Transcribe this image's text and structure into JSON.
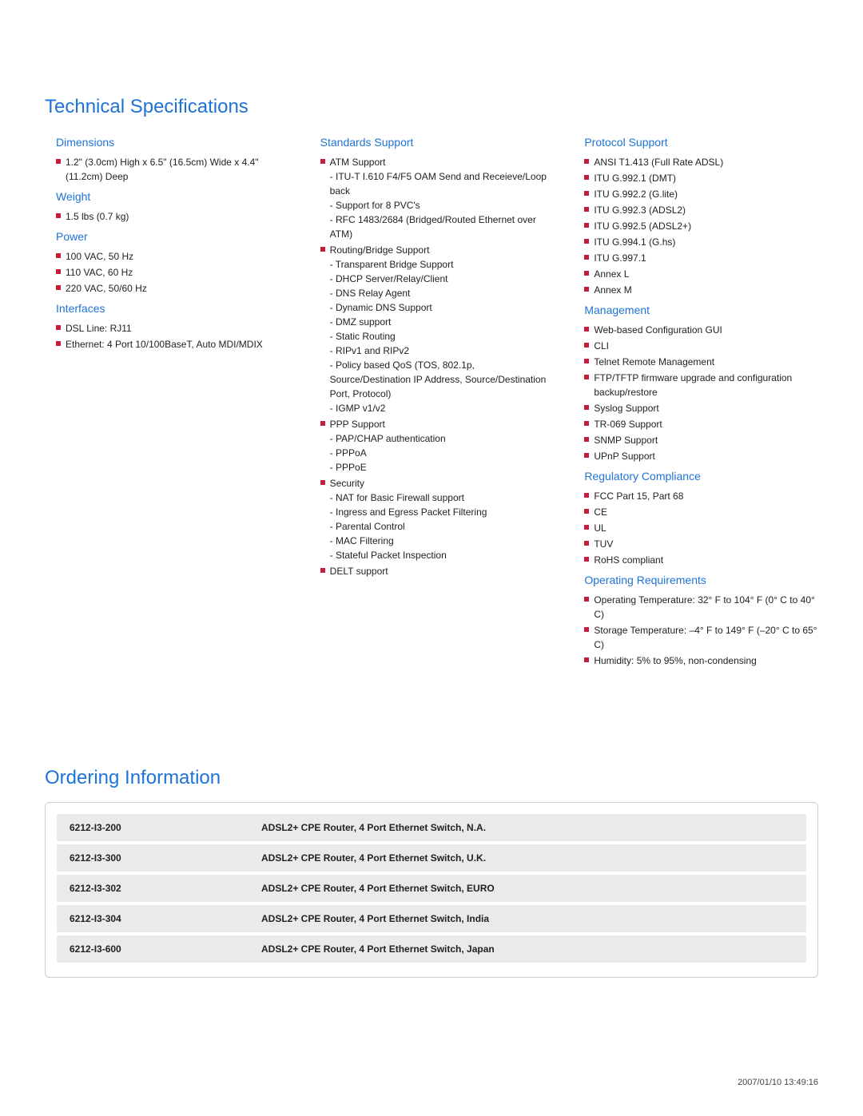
{
  "tech_specs_title": "Technical Specifications",
  "ordering_title": "Ordering Information",
  "timestamp": "2007/01/10 13:49:16",
  "columns": [
    {
      "sections": [
        {
          "title": "Dimensions",
          "items": [
            {
              "text": "1.2\" (3.0cm) High x 6.5\" (16.5cm) Wide x 4.4\" (11.2cm) Deep"
            }
          ]
        },
        {
          "title": "Weight",
          "items": [
            {
              "text": "1.5 lbs (0.7 kg)"
            }
          ]
        },
        {
          "title": "Power",
          "items": [
            {
              "text": "100 VAC, 50 Hz"
            },
            {
              "text": "110 VAC, 60 Hz"
            },
            {
              "text": "220 VAC, 50/60 Hz"
            }
          ]
        },
        {
          "title": "Interfaces",
          "items": [
            {
              "text": "DSL Line: RJ11"
            },
            {
              "text": "Ethernet: 4 Port 10/100BaseT, Auto MDI/MDIX"
            }
          ]
        }
      ]
    },
    {
      "sections": [
        {
          "title": "Standards Support",
          "items": [
            {
              "text": "ATM Support",
              "sub": [
                "- ITU-T I.610 F4/F5 OAM Send and Receieve/Loop back",
                "- Support for 8 PVC's",
                "- RFC 1483/2684 (Bridged/Routed Ethernet over ATM)"
              ]
            },
            {
              "text": "Routing/Bridge Support",
              "sub": [
                "- Transparent Bridge Support",
                "- DHCP Server/Relay/Client",
                "- DNS Relay Agent",
                "- Dynamic DNS Support",
                "- DMZ support",
                "- Static Routing",
                "- RIPv1 and RIPv2",
                "- Policy based QoS (TOS, 802.1p, Source/Destination IP Address, Source/Destination Port, Protocol)",
                "- IGMP v1/v2"
              ]
            },
            {
              "text": "PPP Support",
              "sub": [
                "- PAP/CHAP authentication",
                "- PPPoA",
                "- PPPoE"
              ]
            },
            {
              "text": "Security",
              "sub": [
                "- NAT for Basic Firewall support",
                "- Ingress and Egress Packet Filtering",
                "- Parental Control",
                "- MAC Filtering",
                "- Stateful Packet Inspection"
              ]
            },
            {
              "text": "DELT support"
            }
          ]
        }
      ]
    },
    {
      "sections": [
        {
          "title": "Protocol Support",
          "items": [
            {
              "text": "ANSI T1.413 (Full Rate ADSL)"
            },
            {
              "text": "ITU G.992.1 (DMT)"
            },
            {
              "text": "ITU G.992.2 (G.lite)"
            },
            {
              "text": "ITU G.992.3 (ADSL2)"
            },
            {
              "text": "ITU G.992.5 (ADSL2+)"
            },
            {
              "text": "ITU G.994.1 (G.hs)"
            },
            {
              "text": "ITU G.997.1"
            },
            {
              "text": "Annex L"
            },
            {
              "text": "Annex M"
            }
          ]
        },
        {
          "title": "Management",
          "items": [
            {
              "text": "Web-based Configuration GUI"
            },
            {
              "text": "CLI"
            },
            {
              "text": "Telnet Remote Management"
            },
            {
              "text": "FTP/TFTP firmware upgrade and configuration backup/restore"
            },
            {
              "text": "Syslog Support"
            },
            {
              "text": "TR-069 Support"
            },
            {
              "text": "SNMP Support"
            },
            {
              "text": "UPnP Support"
            }
          ]
        },
        {
          "title": "Regulatory Compliance",
          "items": [
            {
              "text": "FCC Part 15, Part 68"
            },
            {
              "text": "CE"
            },
            {
              "text": "UL"
            },
            {
              "text": "TUV"
            },
            {
              "text": "RoHS compliant"
            }
          ]
        },
        {
          "title": "Operating Requirements",
          "items": [
            {
              "text": "Operating Temperature: 32° F to 104° F (0° C to 40° C)"
            },
            {
              "text": "Storage Temperature: –4° F to 149° F (–20° C to 65° C)"
            },
            {
              "text": "Humidity: 5% to 95%, non-condensing"
            }
          ]
        }
      ]
    }
  ],
  "ordering": [
    {
      "code": "6212-I3-200",
      "desc": "ADSL2+ CPE Router, 4 Port Ethernet Switch, N.A."
    },
    {
      "code": "6212-I3-300",
      "desc": "ADSL2+ CPE Router, 4 Port Ethernet Switch, U.K."
    },
    {
      "code": "6212-I3-302",
      "desc": "ADSL2+ CPE Router, 4 Port Ethernet Switch, EURO"
    },
    {
      "code": "6212-I3-304",
      "desc": "ADSL2+ CPE Router, 4 Port Ethernet Switch, India"
    },
    {
      "code": "6212-I3-600",
      "desc": "ADSL2+ CPE Router, 4 Port Ethernet Switch, Japan"
    }
  ],
  "colors": {
    "heading": "#1e73d6",
    "bullet": "#c41e3a",
    "row_bg": "#eaeaea",
    "border": "#d0d0d0"
  }
}
